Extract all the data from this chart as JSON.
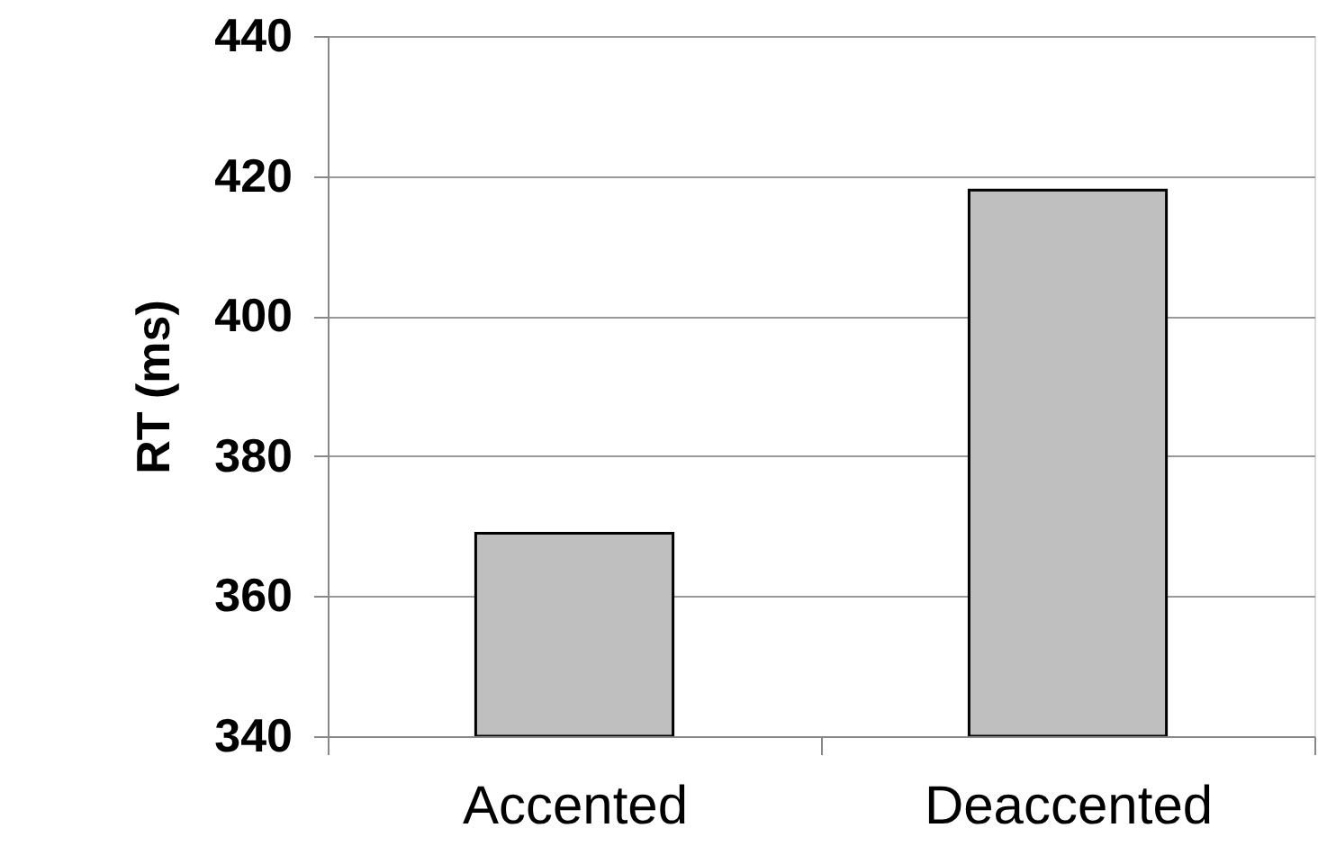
{
  "chart_data": {
    "type": "bar",
    "ylabel": "RT (ms)",
    "categories": [
      "Accented",
      "Deaccented"
    ],
    "values": [
      369,
      418
    ],
    "color": "#bfbfbf",
    "ylim": [
      340,
      440
    ],
    "yticks": [
      340,
      360,
      380,
      400,
      420,
      440
    ],
    "grid": "y"
  }
}
